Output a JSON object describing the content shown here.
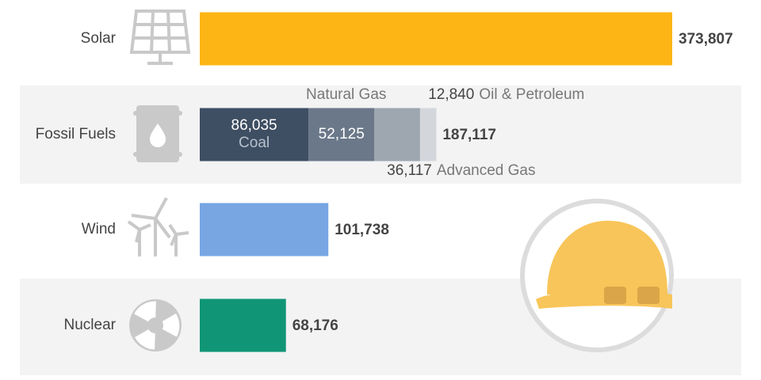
{
  "chart_data": {
    "type": "bar",
    "categories": [
      "Solar",
      "Fossil Fuels",
      "Wind",
      "Nuclear"
    ],
    "values": [
      373807,
      187117,
      101738,
      68176
    ],
    "value_labels": [
      "373,807",
      "187,117",
      "101,738",
      "68,176"
    ],
    "colors": [
      "#fdb515",
      "#d3d7dc",
      "#77a6e3",
      "#109676"
    ],
    "segments": [
      {
        "name": "Coal",
        "value": 86035,
        "label": "86,035",
        "color": "#3e4e63"
      },
      {
        "name": "Natural Gas",
        "value": 52125,
        "label": "52,125",
        "color": "#6b7889"
      },
      {
        "name": "Advanced Gas",
        "value": 36117,
        "label": "36,117",
        "color": "#9ea6b0"
      },
      {
        "name": "Oil & Petroleum",
        "value": 12840,
        "label": "12,840",
        "color": "#d3d7dc"
      }
    ]
  }
}
